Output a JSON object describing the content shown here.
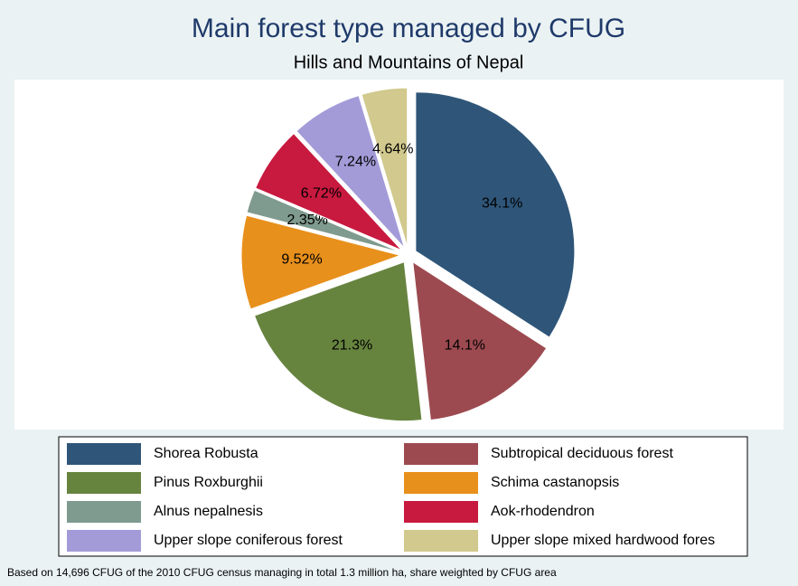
{
  "chart_data": {
    "type": "pie",
    "title": "Main forest type managed by CFUG",
    "subtitle": "Hills and Mountains of Nepal",
    "note": "Based on 14,696 CFUG of the 2010 CFUG census managing in total 1.3 million ha, share weighted by CFUG area",
    "categories": [
      "Shorea Robusta",
      "Subtropical deciduous forest",
      "Pinus Roxburghii",
      "Schima castanopsis",
      "Alnus nepalnesis",
      "Aok-rhodendron",
      "Upper slope coniferous forest",
      "Upper slope mixed hardwood fores"
    ],
    "values": [
      34.1,
      14.1,
      21.3,
      9.52,
      2.35,
      6.72,
      7.24,
      4.64
    ],
    "value_labels": [
      "34.1%",
      "14.1%",
      "21.3%",
      "9.52%",
      "2.35%",
      "6.72%",
      "7.24%",
      "4.64%"
    ],
    "colors": [
      "#2f5679",
      "#9c4a50",
      "#67843f",
      "#e8901c",
      "#7f9a8e",
      "#c8193f",
      "#a39bd8",
      "#d1c98d"
    ]
  }
}
